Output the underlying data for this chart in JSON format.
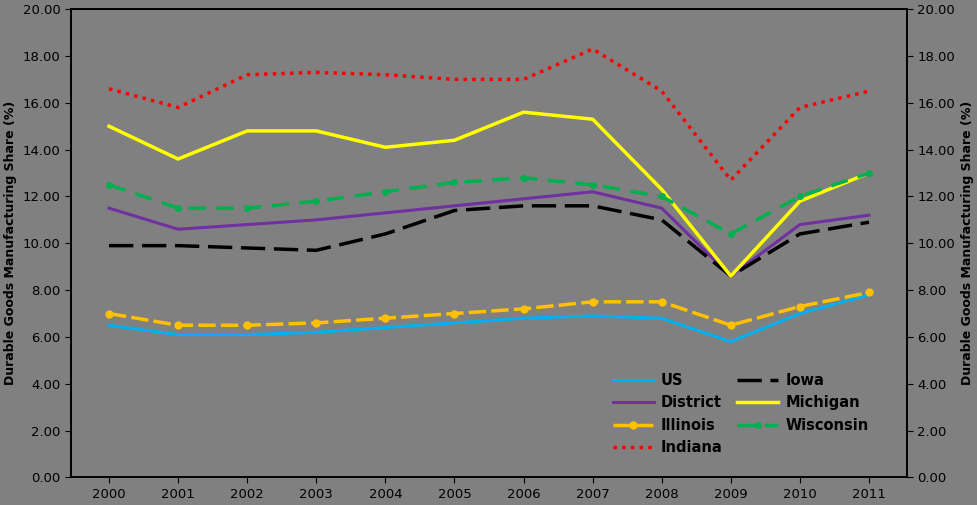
{
  "years": [
    2000,
    2001,
    2002,
    2003,
    2004,
    2005,
    2006,
    2007,
    2008,
    2009,
    2010,
    2011
  ],
  "series": {
    "US": {
      "values": [
        6.5,
        6.1,
        6.1,
        6.2,
        6.4,
        6.6,
        6.8,
        6.9,
        6.8,
        5.8,
        7.0,
        7.8
      ],
      "color": "#00B0F0",
      "linestyle": "-",
      "linewidth": 2.2
    },
    "District": {
      "values": [
        11.5,
        10.6,
        10.8,
        11.0,
        11.3,
        11.6,
        11.9,
        12.2,
        11.5,
        8.6,
        10.8,
        11.2
      ],
      "color": "#7030A0",
      "linestyle": "-",
      "linewidth": 2.2
    },
    "Illinois": {
      "values": [
        7.0,
        6.5,
        6.5,
        6.6,
        6.8,
        7.0,
        7.2,
        7.5,
        7.5,
        6.5,
        7.3,
        7.9
      ],
      "color": "#FFC000",
      "linestyle": "illinois_dash",
      "linewidth": 2.5
    },
    "Indiana": {
      "values": [
        16.6,
        15.8,
        17.2,
        17.3,
        17.2,
        17.0,
        17.0,
        18.3,
        16.5,
        12.7,
        15.8,
        16.5
      ],
      "color": "#FF0000",
      "linestyle": "densely_dotted",
      "linewidth": 2.5
    },
    "Iowa": {
      "values": [
        9.9,
        9.9,
        9.8,
        9.7,
        10.4,
        11.4,
        11.6,
        11.6,
        11.0,
        8.6,
        10.4,
        10.9
      ],
      "color": "#000000",
      "linestyle": "iowa_dash",
      "linewidth": 2.5
    },
    "Michigan": {
      "values": [
        15.0,
        13.6,
        14.8,
        14.8,
        14.1,
        14.4,
        15.6,
        15.3,
        12.3,
        8.6,
        11.8,
        13.0
      ],
      "color": "#FFFF00",
      "linestyle": "-",
      "linewidth": 2.5
    },
    "Wisconsin": {
      "values": [
        12.5,
        11.5,
        11.5,
        11.8,
        12.2,
        12.6,
        12.8,
        12.5,
        12.0,
        10.4,
        12.0,
        13.0
      ],
      "color": "#00B050",
      "linestyle": "wisconsin_dash",
      "linewidth": 2.5
    }
  },
  "ylabel": "Durable Goods Manufacturing Share (%)",
  "ylim": [
    0.0,
    20.0
  ],
  "yticks": [
    0.0,
    2.0,
    4.0,
    6.0,
    8.0,
    10.0,
    12.0,
    14.0,
    16.0,
    18.0,
    20.0
  ],
  "background_color": "#808080",
  "legend_order": [
    "US",
    "District",
    "Illinois",
    "Indiana",
    "Iowa",
    "Michigan",
    "Wisconsin"
  ]
}
